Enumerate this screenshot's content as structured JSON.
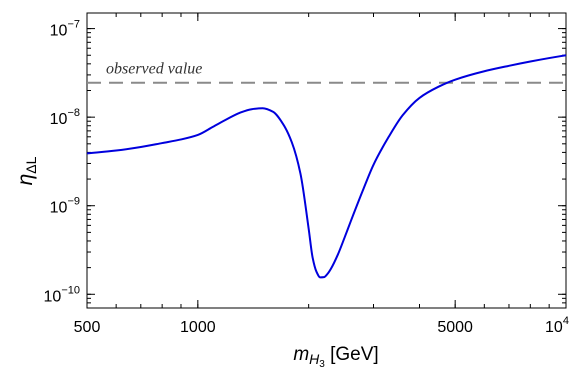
{
  "chart_data": {
    "type": "line",
    "title": "",
    "x_scale": "log",
    "y_scale": "log",
    "xlim": [
      500,
      10000
    ],
    "ylim": [
      7e-11,
      1.5e-07
    ],
    "grid": false,
    "xlabel": {
      "main": "m",
      "sub_main": "H",
      "sub_index": "3",
      "unit": " [GeV]"
    },
    "ylabel": {
      "main": "η",
      "sub": "ΔL"
    },
    "x_ticks": [
      {
        "value": 500,
        "label": "500"
      },
      {
        "value": 1000,
        "label": "1000"
      },
      {
        "value": 5000,
        "label": "5000"
      },
      {
        "value": 10000,
        "label": "10",
        "sup": "4"
      }
    ],
    "y_ticks": [
      {
        "value": 1e-10,
        "base": "10",
        "sup": "−10"
      },
      {
        "value": 1e-09,
        "base": "10",
        "sup": "−9"
      },
      {
        "value": 1e-08,
        "base": "10",
        "sup": "−8"
      },
      {
        "value": 1e-07,
        "base": "10",
        "sup": "−7"
      }
    ],
    "series": [
      {
        "color": "#0000dd",
        "x": [
          500,
          600,
          700,
          800,
          900,
          1000,
          1100,
          1200,
          1300,
          1400,
          1500,
          1600,
          1700,
          1800,
          1900,
          2000,
          2050,
          2100,
          2150,
          2200,
          2250,
          2300,
          2400,
          2500,
          2600,
          2800,
          3000,
          3300,
          3600,
          4000,
          4500,
          5000,
          6000,
          7000,
          8000,
          9000,
          10000
        ],
        "y": [
          3.9e-09,
          4.2e-09,
          4.6e-09,
          5.1e-09,
          5.6e-09,
          6.3e-09,
          7.8e-09,
          9.5e-09,
          1.12e-08,
          1.23e-08,
          1.26e-08,
          1.15e-08,
          8.5e-09,
          5.2e-09,
          2.3e-09,
          5.5e-10,
          2.6e-10,
          1.8e-10,
          1.55e-10,
          1.56e-10,
          1.7e-10,
          1.95e-10,
          2.8e-10,
          4.3e-10,
          6.6e-10,
          1.45e-09,
          2.9e-09,
          6e-09,
          1.05e-08,
          1.65e-08,
          2.2e-08,
          2.65e-08,
          3.3e-08,
          3.8e-08,
          4.25e-08,
          4.65e-08,
          5e-08
        ]
      }
    ],
    "reference_line": {
      "value": 2.45e-08,
      "label": "observed value",
      "color": "#8a8a8a",
      "style": "dashed"
    }
  }
}
